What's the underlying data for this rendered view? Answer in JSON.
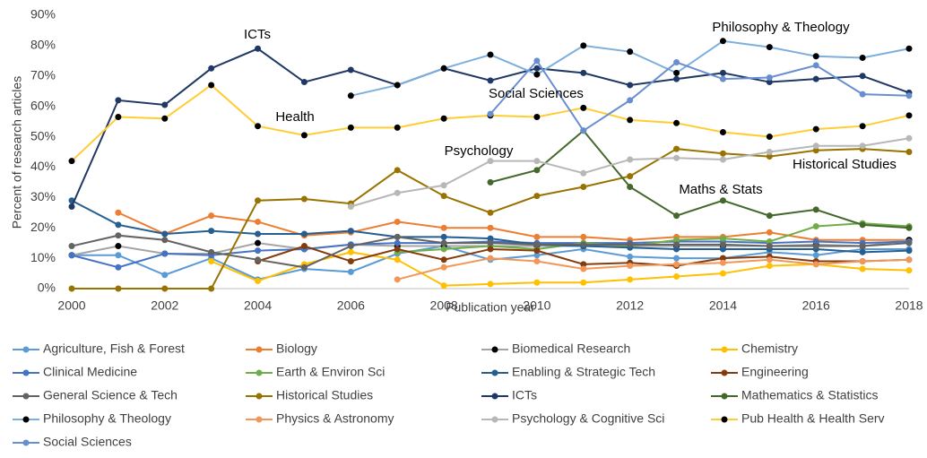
{
  "chart_data": {
    "type": "line",
    "x_label": "Publication year",
    "y_label": "Percent of research articles",
    "x": [
      2000,
      2001,
      2002,
      2003,
      2004,
      2005,
      2006,
      2007,
      2008,
      2009,
      2010,
      2011,
      2012,
      2013,
      2014,
      2015,
      2016,
      2017,
      2018
    ],
    "xlim": [
      2000,
      2018
    ],
    "xticks": [
      2000,
      2002,
      2004,
      2006,
      2008,
      2010,
      2012,
      2014,
      2016,
      2018
    ],
    "ylim": [
      0,
      90
    ],
    "yticks": [
      {
        "value": 0,
        "label": "0%"
      },
      {
        "value": 10,
        "label": "10%"
      },
      {
        "value": 20,
        "label": "20%"
      },
      {
        "value": 30,
        "label": "30%"
      },
      {
        "value": 40,
        "label": "40%"
      },
      {
        "value": 50,
        "label": "50%"
      },
      {
        "value": 60,
        "label": "60%"
      },
      {
        "value": 70,
        "label": "70%"
      },
      {
        "value": 80,
        "label": "80%"
      },
      {
        "value": 90,
        "label": "90%"
      }
    ],
    "grid": false,
    "legend": "bottom",
    "annotations": [
      "ICTs",
      "Health",
      "Philosophy & Theology",
      "Social Sciences",
      "Psychology",
      "Historical Studies",
      "Maths & Stats"
    ],
    "series": [
      {
        "name": "Agriculture, Fish & Forest",
        "color": "#5b9bd5",
        "values": [
          11,
          11,
          4.5,
          10,
          3,
          6.5,
          5.5,
          11.5,
          14,
          9.5,
          11,
          13,
          10.5,
          10,
          10,
          12,
          11,
          13,
          13
        ]
      },
      {
        "name": "Biology",
        "color": "#ed7d31",
        "values": [
          null,
          25,
          18,
          24,
          22,
          17.5,
          18.5,
          22,
          20,
          20,
          17,
          17,
          16,
          17,
          17,
          18.5,
          16,
          16,
          16
        ]
      },
      {
        "name": "Biomedical Research",
        "color": "#a5a5a5",
        "marker": "#000000",
        "values": [
          11,
          14,
          11.5,
          11.5,
          15,
          13,
          14.5,
          14,
          14,
          14,
          14,
          14,
          14,
          14,
          14,
          14,
          14.5,
          14,
          16
        ]
      },
      {
        "name": "Chemistry",
        "color": "#ffc000",
        "values": [
          null,
          null,
          null,
          9,
          2.5,
          8,
          12,
          9.5,
          1,
          1.5,
          2,
          2,
          3,
          4,
          5,
          7.5,
          8,
          6.5,
          6
        ]
      },
      {
        "name": "Clinical Medicine",
        "color": "#4472c4",
        "values": [
          11,
          7,
          11.5,
          11,
          12.5,
          13,
          14.5,
          15,
          15,
          15.5,
          15,
          15,
          15,
          15.5,
          15.5,
          15,
          15.5,
          15,
          15.5
        ]
      },
      {
        "name": "Earth & Environ Sci",
        "color": "#70ad47",
        "values": [
          null,
          null,
          null,
          null,
          null,
          null,
          null,
          12,
          13,
          14,
          13,
          15,
          14,
          16,
          16.5,
          15.5,
          20.5,
          21.5,
          20.5
        ]
      },
      {
        "name": "Enabling & Strategic Tech",
        "color": "#255e91",
        "values": [
          29,
          21,
          18,
          19,
          18,
          18,
          19,
          17,
          17,
          16.5,
          14.5,
          14,
          13.5,
          13,
          13,
          13,
          13,
          12,
          12.5
        ]
      },
      {
        "name": "Engineering",
        "color": "#843c0c",
        "values": [
          null,
          null,
          null,
          null,
          9,
          14,
          9,
          13,
          9.5,
          13,
          12.5,
          8,
          8.5,
          7.5,
          10,
          10.5,
          9,
          9,
          9.5
        ]
      },
      {
        "name": "General Science & Tech",
        "color": "#636363",
        "values": [
          14,
          17.5,
          16,
          12,
          9.5,
          7,
          14,
          17,
          15,
          15,
          14.5,
          14.5,
          14.5,
          14.5,
          14.5,
          14,
          14,
          14,
          15
        ]
      },
      {
        "name": "Historical Studies",
        "color": "#997300",
        "values": [
          0,
          0,
          0,
          0,
          29,
          29.5,
          28,
          39,
          30.5,
          25,
          30.5,
          33.5,
          37,
          46,
          44.5,
          43.5,
          45.5,
          46,
          45
        ]
      },
      {
        "name": "ICTs",
        "color": "#203864",
        "values": [
          27,
          62,
          60.5,
          72.5,
          79,
          68,
          72,
          67,
          72.5,
          68.5,
          72.5,
          71,
          67,
          69,
          71,
          68,
          69,
          70,
          64.5
        ]
      },
      {
        "name": "Mathematics & Statistics",
        "color": "#43682b",
        "values": [
          null,
          null,
          null,
          null,
          null,
          null,
          null,
          null,
          null,
          35,
          39,
          52,
          33.5,
          24,
          29,
          24,
          26,
          21,
          20
        ]
      },
      {
        "name": "Philosophy & Theology",
        "color": "#7cafdd",
        "marker": "#000000",
        "values": [
          null,
          null,
          null,
          null,
          null,
          null,
          63.5,
          67,
          72.5,
          77,
          70.5,
          80,
          78,
          71,
          81.5,
          79.5,
          76.5,
          76,
          79
        ]
      },
      {
        "name": "Physics & Astronomy",
        "color": "#f1975a",
        "values": [
          null,
          null,
          null,
          null,
          null,
          null,
          null,
          3,
          7,
          10,
          9,
          6.5,
          7.5,
          8,
          8.5,
          9.5,
          8,
          9,
          9.5
        ]
      },
      {
        "name": "Psychology & Cognitive Sci",
        "color": "#b7b7b7",
        "values": [
          null,
          null,
          null,
          null,
          null,
          null,
          27,
          31.5,
          34,
          42,
          42,
          38,
          42.5,
          43,
          42.5,
          45,
          47,
          47,
          49.5
        ]
      },
      {
        "name": "Pub Health & Health Serv",
        "color": "#ffcd33",
        "marker": "#000000",
        "values": [
          42,
          56.5,
          56,
          67,
          53.5,
          50.5,
          53,
          53,
          56,
          57,
          56.5,
          59.5,
          55.5,
          54.5,
          51.5,
          50,
          52.5,
          53.5,
          57
        ]
      },
      {
        "name": "Social Sciences",
        "color": "#698ed0",
        "values": [
          null,
          null,
          null,
          null,
          null,
          null,
          null,
          null,
          null,
          57.5,
          75,
          52,
          62,
          74.5,
          69,
          69.5,
          73.5,
          64,
          63.5
        ]
      }
    ]
  }
}
